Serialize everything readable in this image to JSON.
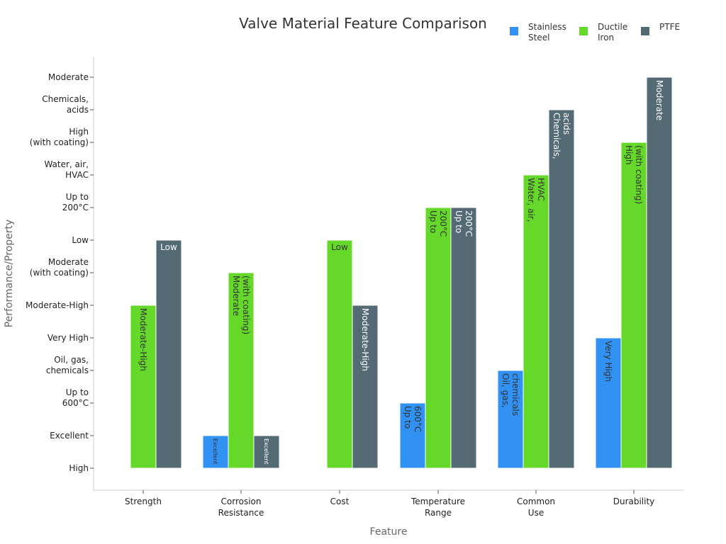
{
  "chart_data": {
    "type": "bar",
    "title": "Valve Material Feature Comparison",
    "xlabel": "Feature",
    "ylabel": "Performance/Property",
    "categories": [
      "Strength",
      "Corrosion\nResistance",
      "Cost",
      "Temperature\nRange",
      "Common\nUse",
      "Durability"
    ],
    "y_categories": [
      "High",
      "Excellent",
      "Up to\n600°C",
      "Oil, gas,\nchemicals",
      "Very High",
      "Moderate-High",
      "Moderate\n(with coating)",
      "Low",
      "Up to\n200°C",
      "Water, air,\nHVAC",
      "High\n(with coating)",
      "Chemicals,\nacids",
      "Moderate"
    ],
    "legend_position": "top-right",
    "grid": false,
    "series": [
      {
        "name": "Stainless\nSteel",
        "color": "#3192f4",
        "label_color": "#333333",
        "values": [
          "High",
          "Excellent",
          "High",
          "Up to\n600°C",
          "Oil, gas,\nchemicals",
          "Very High"
        ],
        "labels": [
          "",
          "Excellent",
          "",
          "Up to\n600°C",
          "Oil, gas,\nchemicals",
          "Very High"
        ]
      },
      {
        "name": "Ductile\nIron",
        "color": "#66d829",
        "label_color": "#333333",
        "values": [
          "Moderate-High",
          "Moderate\n(with coating)",
          "Low",
          "Up to\n200°C",
          "Water, air,\nHVAC",
          "High\n(with coating)"
        ],
        "labels": [
          "Moderate-High",
          "Moderate\n(with coating)",
          "Low",
          "Up to\n200°C",
          "Water, air,\nHVAC",
          "High\n(with coating)"
        ]
      },
      {
        "name": "PTFE",
        "color": "#546b76",
        "label_color": "#ffffff",
        "values": [
          "Low",
          "Excellent",
          "Moderate-High",
          "Up to\n200°C",
          "Chemicals,\nacids",
          "Moderate"
        ],
        "labels": [
          "Low",
          "Excellent",
          "Moderate-High",
          "Up to\n200°C",
          "Chemicals,\nacids",
          "Moderate"
        ]
      }
    ]
  }
}
